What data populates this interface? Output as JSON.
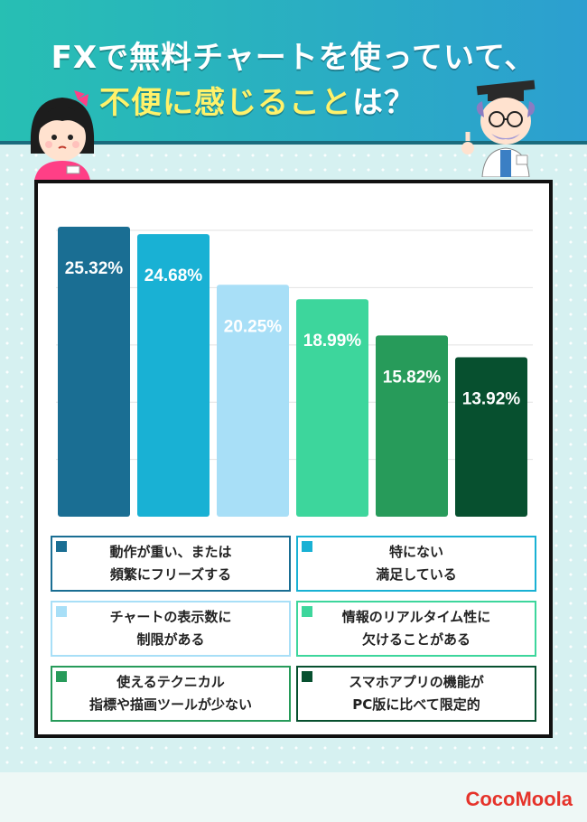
{
  "title": {
    "line1": "FXで無料チャートを使っていて、",
    "line2_highlight": "不便に感じること",
    "line2_rest": "は？"
  },
  "brand": "CocoMoola",
  "chart_data": {
    "type": "bar",
    "ylim": [
      0,
      28
    ],
    "grid": true,
    "legend_position": "bottom",
    "value_unit": "%",
    "series": [
      {
        "name": "動作が重い、または頻繁にフリーズする",
        "lines": [
          "動作が重い、または",
          "頻繁にフリーズする"
        ],
        "value": 25.32,
        "label": "25.32%",
        "color": "#1a6e93",
        "label_color": "#ffffff"
      },
      {
        "name": "特にない満足している",
        "lines": [
          "特にない",
          "満足している"
        ],
        "value": 24.68,
        "label": "24.68%",
        "color": "#19b1d4",
        "label_color": "#ffffff"
      },
      {
        "name": "チャートの表示数に制限がある",
        "lines": [
          "チャートの表示数に",
          "制限がある"
        ],
        "value": 20.25,
        "label": "20.25%",
        "color": "#a8dff7",
        "label_color": "#ffffff"
      },
      {
        "name": "情報のリアルタイム性に欠けることがある",
        "lines": [
          "情報のリアルタイム性に",
          "欠けることがある"
        ],
        "value": 18.99,
        "label": "18.99%",
        "color": "#3dd69c",
        "label_color": "#ffffff"
      },
      {
        "name": "使えるテクニカル指標や描画ツールが少ない",
        "lines": [
          "使えるテクニカル",
          "指標や描画ツールが少ない"
        ],
        "value": 15.82,
        "label": "15.82%",
        "color": "#279b5a",
        "label_color": "#ffffff"
      },
      {
        "name": "スマホアプリの機能がPC版に比べて限定的",
        "lines": [
          "スマホアプリの機能が",
          "PC版に比べて限定的"
        ],
        "value": 13.92,
        "label": "13.92%",
        "color": "#07502f",
        "label_color": "#ffffff"
      }
    ]
  }
}
